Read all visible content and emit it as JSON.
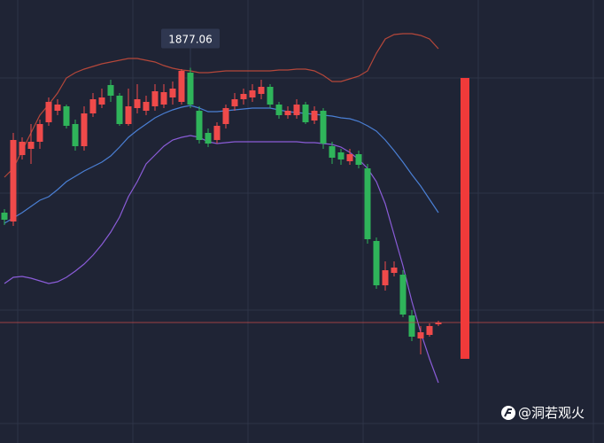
{
  "chart_data": {
    "type": "candlestick",
    "ylim": [
      1750,
      1900
    ],
    "up_color": "#ef4a4a",
    "down_color": "#2fb45a",
    "open": [
      1828,
      1825,
      1847.5,
      1849.6,
      1852,
      1858.6,
      1862.5,
      1864,
      1858,
      1850.5,
      1861.6,
      1864.6,
      1871.2,
      1867.6,
      1858,
      1863.4,
      1862.5,
      1864,
      1864.6,
      1867,
      1865.5,
      1875.4,
      1862.5,
      1855,
      1852.6,
      1858,
      1864,
      1866.4,
      1867,
      1868.2,
      1870.6,
      1864.6,
      1861,
      1861,
      1864.6,
      1859.2,
      1862.5,
      1850.5,
      1848.4,
      1845.4,
      1847.8,
      1843,
      1818.4,
      1803.4,
      1807.6,
      1807,
      1793.2,
      1785.4,
      1786.6,
      1790.2
    ],
    "high": [
      1829.2,
      1855,
      1853.5,
      1858,
      1859.5,
      1867,
      1866.4,
      1864.6,
      1859.5,
      1864,
      1868.5,
      1870,
      1873,
      1868.5,
      1870,
      1871.5,
      1867.6,
      1871.5,
      1871.5,
      1872.4,
      1876.6,
      1877.06,
      1864,
      1856.5,
      1858.6,
      1864.6,
      1868.5,
      1870,
      1871.5,
      1873,
      1871.5,
      1865.5,
      1864,
      1866.4,
      1865.5,
      1864,
      1863.4,
      1852,
      1849.6,
      1849.6,
      1849,
      1844.5,
      1819.6,
      1811.5,
      1811.5,
      1808.5,
      1795,
      1789.6,
      1790.5,
      1791.4
    ],
    "low": [
      1823.8,
      1823.5,
      1846,
      1844.5,
      1849.6,
      1857.4,
      1861,
      1856.5,
      1849,
      1849,
      1860.4,
      1863.4,
      1865.5,
      1857.4,
      1857.4,
      1861.6,
      1861,
      1862.5,
      1863.4,
      1864.6,
      1864.6,
      1863.4,
      1851.4,
      1850.2,
      1851.4,
      1856.5,
      1862.5,
      1864.6,
      1865.5,
      1866.4,
      1863.4,
      1859.8,
      1859.8,
      1859.8,
      1858,
      1858,
      1849.6,
      1844.5,
      1844.2,
      1844.2,
      1843,
      1817.5,
      1802.2,
      1801.6,
      1806.4,
      1792.6,
      1784.5,
      1780,
      1786,
      1789.6
    ],
    "close": [
      1825.6,
      1852.6,
      1852,
      1852,
      1858,
      1865.5,
      1864.6,
      1857.4,
      1850.5,
      1861.6,
      1866.4,
      1867,
      1867.6,
      1858,
      1864,
      1866.4,
      1865.5,
      1869.1,
      1868.8,
      1870,
      1876,
      1864.6,
      1852.6,
      1851.4,
      1857.4,
      1863.4,
      1866.4,
      1868.2,
      1869.4,
      1870.6,
      1864.6,
      1861,
      1862.5,
      1864.6,
      1858.6,
      1862.5,
      1851.4,
      1846.6,
      1846,
      1847.8,
      1844.2,
      1819,
      1803.4,
      1808.5,
      1809.4,
      1793.5,
      1786,
      1787.5,
      1789.6,
      1790.8
    ],
    "bands": [
      {
        "color": "#b5473a",
        "values": [
          1840,
          1843,
          1849,
          1855,
          1861,
          1864.6,
          1868.5,
          1873.6,
          1875.4,
          1876.6,
          1877.5,
          1878.4,
          1879,
          1879.6,
          1880.2,
          1880.2,
          1879.6,
          1879,
          1877.8,
          1876.9,
          1876.3,
          1876,
          1875.4,
          1875.4,
          1875.7,
          1876,
          1876,
          1876,
          1876,
          1876,
          1876,
          1876.3,
          1876.3,
          1876.6,
          1876.6,
          1876,
          1874.5,
          1872.4,
          1872.4,
          1873.3,
          1874.2,
          1876,
          1882,
          1886.8,
          1888.3,
          1888.6,
          1888.6,
          1888,
          1886.8,
          1883.5
        ]
      },
      {
        "color": "#4a7fd4",
        "values": [
          1824.4,
          1826.2,
          1828,
          1830.1,
          1832.2,
          1833.4,
          1835.8,
          1838.5,
          1840.3,
          1842.1,
          1843.6,
          1845.1,
          1847.2,
          1850.2,
          1853.5,
          1855.9,
          1858,
          1860.1,
          1861.6,
          1862.8,
          1863.7,
          1864.3,
          1863.4,
          1862.2,
          1862.2,
          1862.5,
          1862.8,
          1863.1,
          1863.4,
          1863.4,
          1863.4,
          1862.8,
          1862.2,
          1861.9,
          1861.6,
          1861.3,
          1861,
          1860.7,
          1860.1,
          1859.8,
          1858.9,
          1857.4,
          1855.6,
          1852.6,
          1849,
          1845.1,
          1840.9,
          1837,
          1832.5,
          1828
        ]
      },
      {
        "color": "#8a5cd8",
        "values": [
          1804,
          1806.1,
          1806.4,
          1805.8,
          1804.9,
          1804,
          1804.6,
          1806.1,
          1808.2,
          1810.6,
          1813.6,
          1817.2,
          1821.4,
          1826.5,
          1833.4,
          1838.5,
          1844.5,
          1847.5,
          1850.5,
          1852.6,
          1853.5,
          1854.1,
          1853.5,
          1852,
          1851.4,
          1851.7,
          1852,
          1852,
          1852,
          1852,
          1852,
          1852,
          1852,
          1852,
          1851.7,
          1851.7,
          1851.4,
          1851.1,
          1850.2,
          1848.4,
          1846,
          1843,
          1838.5,
          1831,
          1820.5,
          1810,
          1798,
          1787.5,
          1778.5,
          1770.4
        ]
      }
    ],
    "range_bar": [
      1778.5,
      1873.6
    ],
    "range_bar_color": "#f03a3a",
    "tooltip_index": 21
  },
  "watermark": "@洞若观火"
}
